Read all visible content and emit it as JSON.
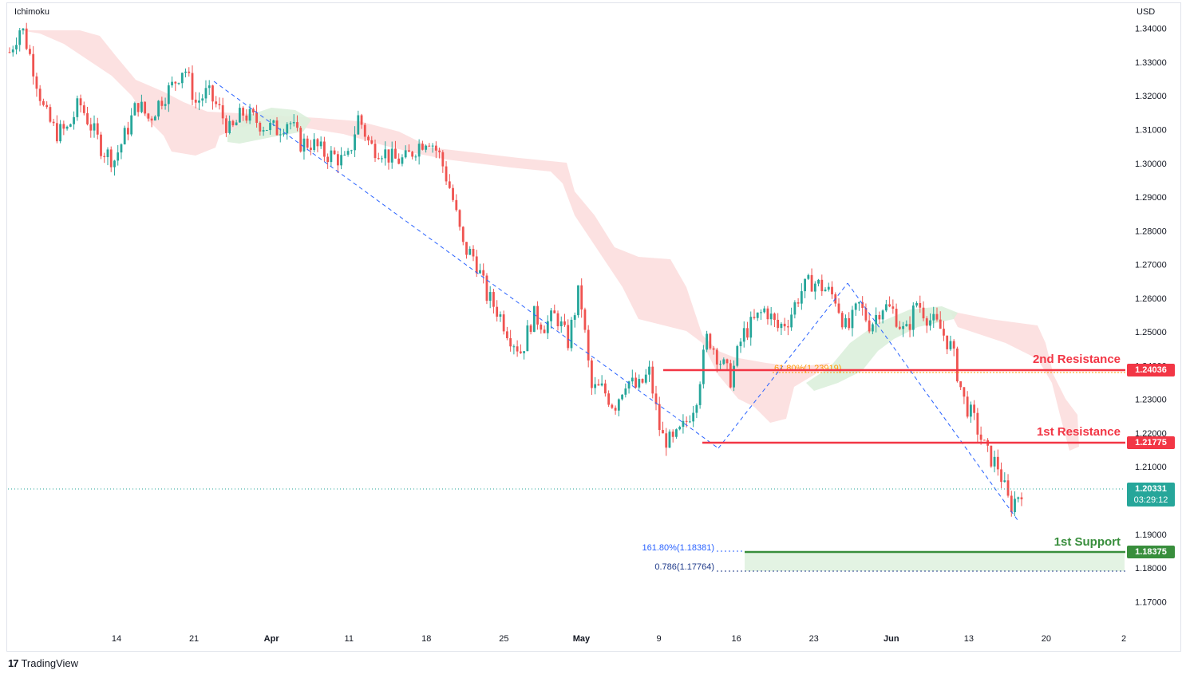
{
  "header": {
    "indicator": "Ichimoku",
    "currency": "USD"
  },
  "footer": {
    "brand": "TradingView"
  },
  "levels": {
    "second_resistance": {
      "label": "2nd Resistance",
      "price": "1.24036",
      "value": 1.24036,
      "color": "#f23645"
    },
    "first_resistance": {
      "label": "1st Resistance",
      "price": "1.21775",
      "value": 1.21775,
      "color": "#f23645"
    },
    "first_support": {
      "label": "1st Support",
      "price": "1.18375",
      "value": 1.18375,
      "color": "#388e3c"
    },
    "current": {
      "price": "1.20331",
      "countdown": "03:29:12",
      "value": 1.20331,
      "color": "#26a69a"
    }
  },
  "fib_labels": {
    "retracement": "61.80%(1.23919)",
    "extension": "161.80%(1.18381)",
    "ratio": "0.786(1.17764)"
  },
  "chart_data": {
    "type": "candlestick",
    "y_ticks": [
      1.34,
      1.33,
      1.32,
      1.31,
      1.3,
      1.29,
      1.28,
      1.27,
      1.26,
      1.25,
      1.24,
      1.23,
      1.22,
      1.21,
      1.2,
      1.19,
      1.18,
      1.17
    ],
    "y_tick_labels": [
      "1.34000",
      "1.33000",
      "1.32000",
      "1.31000",
      "1.30000",
      "1.29000",
      "1.28000",
      "1.27000",
      "1.26000",
      "1.25000",
      "1.24000",
      "1.23000",
      "1.22000",
      "1.21000",
      "1.20000",
      "1.19000",
      "1.18000",
      "1.17000"
    ],
    "ylim": [
      1.1625,
      1.3475
    ],
    "x_ticks": [
      "14",
      "21",
      "Apr",
      "11",
      "18",
      "25",
      "May",
      "9",
      "16",
      "23",
      "Jun",
      "13",
      "20",
      "2"
    ],
    "x_tick_bold": [
      "Apr",
      "May",
      "Jun"
    ],
    "colors": {
      "up": "#26a69a",
      "down": "#ef5350",
      "cloud_bear": "#fcdcdc",
      "cloud_bull": "#dcefdc",
      "trend": "#2962ff"
    },
    "close_path": [
      1.333,
      1.341,
      1.329,
      1.315,
      1.309,
      1.31,
      1.318,
      1.311,
      1.304,
      1.301,
      1.309,
      1.318,
      1.313,
      1.319,
      1.323,
      1.329,
      1.318,
      1.321,
      1.316,
      1.309,
      1.315,
      1.313,
      1.311,
      1.31,
      1.313,
      1.306,
      1.306,
      1.303,
      1.302,
      1.3,
      1.314,
      1.305,
      1.304,
      1.301,
      1.301,
      1.305,
      1.308,
      1.302,
      1.291,
      1.275,
      1.272,
      1.261,
      1.256,
      1.249,
      1.244,
      1.255,
      1.252,
      1.255,
      1.247,
      1.263,
      1.233,
      1.233,
      1.228,
      1.236,
      1.233,
      1.238,
      1.219,
      1.217,
      1.222,
      1.23,
      1.249,
      1.242,
      1.236,
      1.249,
      1.253,
      1.257,
      1.251,
      1.254,
      1.262,
      1.265,
      1.263,
      1.26,
      1.25,
      1.258,
      1.252,
      1.258,
      1.256,
      1.249,
      1.259,
      1.254,
      1.251,
      1.245,
      1.23,
      1.223,
      1.214,
      1.21,
      1.198,
      1.2033
    ]
  }
}
